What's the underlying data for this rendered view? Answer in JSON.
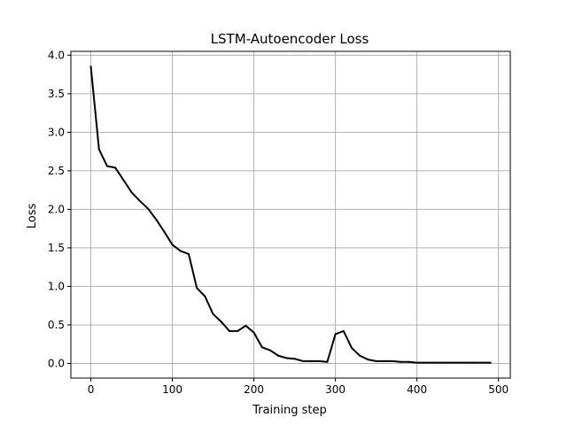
{
  "chart_data": {
    "type": "line",
    "title": "LSTM-Autoencoder Loss",
    "xlabel": "Training step",
    "ylabel": "Loss",
    "xlim": [
      -24.5,
      514.5
    ],
    "ylim": [
      -0.19,
      4.05
    ],
    "xticks": [
      0,
      100,
      200,
      300,
      400,
      500
    ],
    "xtick_labels": [
      "0",
      "100",
      "200",
      "300",
      "400",
      "500"
    ],
    "yticks": [
      0.0,
      0.5,
      1.0,
      1.5,
      2.0,
      2.5,
      3.0,
      3.5,
      4.0
    ],
    "ytick_labels": [
      "0.0",
      "0.5",
      "1.0",
      "1.5",
      "2.0",
      "2.5",
      "3.0",
      "3.5",
      "4.0"
    ],
    "grid": true,
    "line_color": "#000000",
    "grid_color": "#b0b0b0",
    "series": [
      {
        "x": [
          0,
          10,
          20,
          30,
          40,
          50,
          60,
          70,
          80,
          90,
          100,
          110,
          120,
          130,
          140,
          150,
          160,
          170,
          180,
          190,
          200,
          210,
          220,
          230,
          240,
          250,
          260,
          270,
          280,
          290,
          300,
          310,
          320,
          330,
          340,
          350,
          360,
          370,
          380,
          390,
          400,
          410,
          420,
          430,
          440,
          450,
          460,
          470,
          480,
          490
        ],
        "y": [
          3.85,
          2.78,
          2.56,
          2.54,
          2.38,
          2.22,
          2.11,
          2.01,
          1.87,
          1.71,
          1.54,
          1.46,
          1.42,
          0.98,
          0.87,
          0.64,
          0.54,
          0.42,
          0.42,
          0.49,
          0.4,
          0.21,
          0.17,
          0.1,
          0.07,
          0.06,
          0.03,
          0.03,
          0.03,
          0.02,
          0.38,
          0.42,
          0.2,
          0.1,
          0.05,
          0.03,
          0.03,
          0.03,
          0.02,
          0.02,
          0.01,
          0.01,
          0.01,
          0.01,
          0.01,
          0.01,
          0.01,
          0.01,
          0.01,
          0.01
        ]
      }
    ]
  }
}
